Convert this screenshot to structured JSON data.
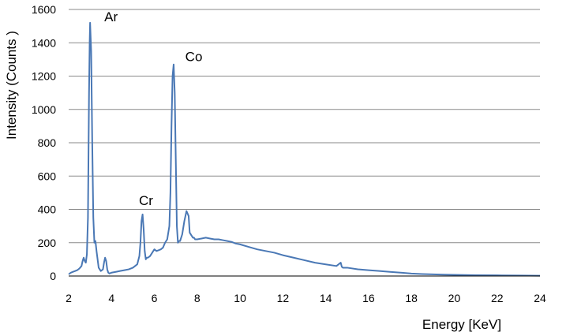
{
  "chart_data": {
    "type": "line",
    "title": "",
    "xlabel": "Energy [KeV]",
    "ylabel": "Intensity (Counts )",
    "xlim": [
      2,
      24
    ],
    "ylim": [
      0,
      1600
    ],
    "x_ticks": [
      2,
      4,
      6,
      8,
      10,
      12,
      14,
      16,
      18,
      20,
      22,
      24
    ],
    "y_ticks": [
      0,
      200,
      400,
      600,
      800,
      1000,
      1200,
      1400,
      1600
    ],
    "grid": true,
    "legend": "none",
    "line_color": "#4a78b5",
    "series": [
      {
        "x": [
          2.0,
          2.1,
          2.2,
          2.3,
          2.4,
          2.5,
          2.6,
          2.65,
          2.7,
          2.75,
          2.8,
          2.85,
          2.9,
          2.95,
          2.98,
          3.0,
          3.05,
          3.1,
          3.15,
          3.2,
          3.25,
          3.3,
          3.4,
          3.5,
          3.6,
          3.65,
          3.7,
          3.75,
          3.8,
          3.85,
          3.9,
          4.0,
          4.2,
          4.4,
          4.6,
          4.8,
          5.0,
          5.1,
          5.2,
          5.3,
          5.35,
          5.4,
          5.45,
          5.5,
          5.55,
          5.6,
          5.65,
          5.7,
          5.8,
          5.9,
          6.0,
          6.1,
          6.2,
          6.3,
          6.4,
          6.5,
          6.6,
          6.7,
          6.75,
          6.8,
          6.85,
          6.9,
          6.95,
          7.0,
          7.05,
          7.1,
          7.15,
          7.2,
          7.25,
          7.3,
          7.4,
          7.5,
          7.6,
          7.65,
          7.7,
          7.75,
          7.8,
          7.85,
          7.9,
          8.0,
          8.2,
          8.4,
          8.6,
          8.8,
          9.0,
          9.2,
          9.4,
          9.6,
          9.8,
          10.0,
          10.4,
          10.8,
          11.2,
          11.6,
          12.0,
          12.5,
          13.0,
          13.5,
          14.0,
          14.5,
          14.7,
          14.75,
          14.8,
          15.0,
          15.5,
          16.0,
          16.5,
          17.0,
          17.5,
          18.0,
          18.5,
          19.0,
          19.5,
          20.0,
          21.0,
          22.0,
          23.0,
          24.0
        ],
        "y": [
          10,
          20,
          25,
          30,
          35,
          45,
          60,
          90,
          110,
          90,
          80,
          130,
          350,
          1100,
          1400,
          1520,
          1350,
          800,
          350,
          200,
          210,
          150,
          50,
          30,
          40,
          80,
          110,
          90,
          40,
          20,
          15,
          20,
          25,
          30,
          35,
          40,
          50,
          60,
          70,
          120,
          200,
          330,
          370,
          280,
          150,
          100,
          110,
          110,
          120,
          140,
          160,
          150,
          155,
          160,
          170,
          200,
          220,
          300,
          500,
          900,
          1200,
          1270,
          1100,
          700,
          300,
          200,
          210,
          210,
          230,
          250,
          330,
          390,
          360,
          260,
          250,
          240,
          230,
          230,
          220,
          220,
          225,
          230,
          225,
          220,
          220,
          215,
          210,
          205,
          195,
          190,
          175,
          160,
          150,
          140,
          125,
          110,
          95,
          80,
          70,
          60,
          80,
          55,
          50,
          50,
          40,
          35,
          30,
          25,
          20,
          15,
          12,
          10,
          8,
          7,
          5,
          4,
          3,
          2
        ]
      }
    ],
    "annotations": [
      {
        "text": "Ar",
        "x": 3.0,
        "y": 1520
      },
      {
        "text": "Co",
        "x": 7.0,
        "y": 1270
      },
      {
        "text": "Cr",
        "x": 5.5,
        "y": 370
      }
    ]
  }
}
